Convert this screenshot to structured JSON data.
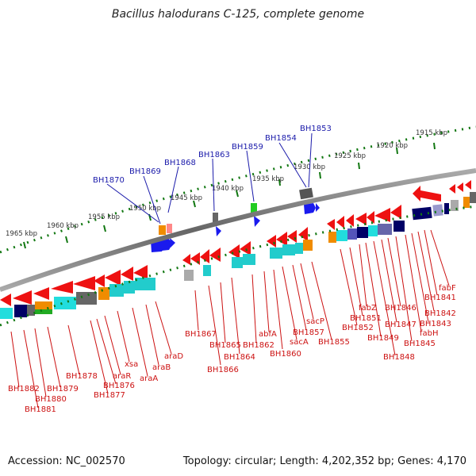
{
  "title": "Bacillus halodurans C-125, complete genome",
  "footer": {
    "accession": "Accession: NC_002570",
    "stats": "Topology: circular; Length: 4,202,352 bp; Genes: 4,170"
  },
  "scale_labels": [
    "1915 kbp",
    "1920 kbp",
    "1925 kbp",
    "1930 kbp",
    "1935 kbp",
    "1940 kbp",
    "1945 kbp",
    "1950 kbp",
    "1955 kbp",
    "1960 kbp",
    "1965 kbp"
  ],
  "top_labels": [
    "BH1853",
    "BH1854",
    "BH1859",
    "BH1863",
    "BH1868",
    "BH1869",
    "BH1870"
  ],
  "bottom_labels": {
    "right_group": [
      "fabF",
      "BH1841",
      "BH1842",
      "BH1843",
      "fabH",
      "BH1845",
      "BH1846",
      "BH1847",
      "BH1848",
      "BH1849",
      "fabZ",
      "BH1851",
      "BH1852"
    ],
    "middle_group": [
      "BH1855",
      "sacP",
      "BH1857",
      "sacA",
      "BH1860",
      "abfA",
      "BH1862",
      "BH1864",
      "BH1865",
      "BH1866",
      "BH1867"
    ],
    "left_group": [
      "araD",
      "araB",
      "araA",
      "xsa",
      "araR",
      "BH1876",
      "BH1877",
      "BH1878",
      "BH1879",
      "BH1880",
      "BH1881",
      "BH1882"
    ]
  },
  "colors": {
    "forward_gene": "#1a1aee",
    "reverse_gene": "#ee1111",
    "label_forward": "#1a1aaa",
    "label_reverse": "#cc1111",
    "scale_ticks": "#117711",
    "backbone": "#888888",
    "orange": "#f08c00",
    "cyan": "#22dddd",
    "navy": "#000066"
  }
}
